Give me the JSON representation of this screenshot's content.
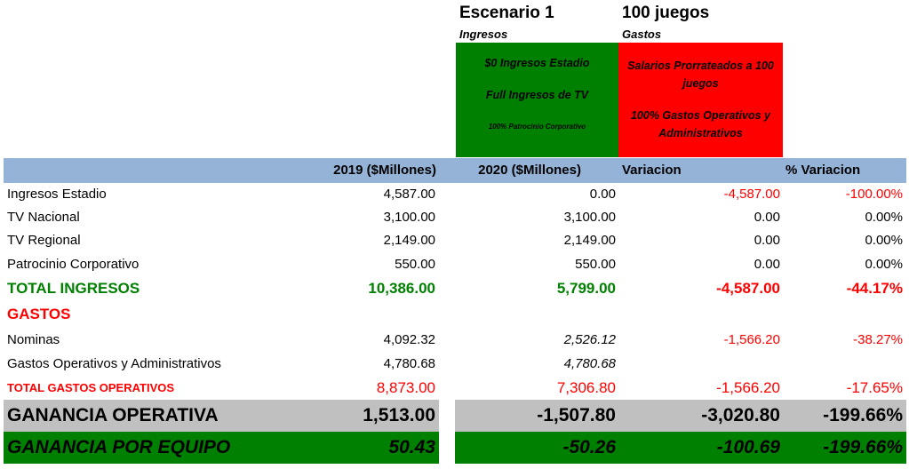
{
  "scenario": {
    "title": "Escenario 1",
    "games": "100 juegos",
    "ingresos_label": "Ingresos",
    "gastos_label": "Gastos",
    "ingresos_notes": [
      "$0 Ingresos Estadio",
      "Full Ingresos de TV",
      "100% Patrocinio Corporativo"
    ],
    "gastos_notes": [
      "Salarios Prorrateados a 100 juegos",
      "100% Gastos Operativos y Administrativos"
    ]
  },
  "header": {
    "col1": "2019 ($Millones)",
    "col2": "2020 ($Millones)",
    "col3": "Variacion",
    "col4": "% Variacion"
  },
  "rows": [
    {
      "label": "Ingresos Estadio",
      "v2019": "4,587.00",
      "v2020": "0.00",
      "var": "-4,587.00",
      "pct": "-100.00%"
    },
    {
      "label": "TV Nacional",
      "v2019": "3,100.00",
      "v2020": "3,100.00",
      "var": "0.00",
      "pct": "0.00%"
    },
    {
      "label": "TV Regional",
      "v2019": "2,149.00",
      "v2020": "2,149.00",
      "var": "0.00",
      "pct": "0.00%"
    },
    {
      "label": "Patrocinio Corporativo",
      "v2019": "550.00",
      "v2020": "550.00",
      "var": "0.00",
      "pct": "0.00%"
    },
    {
      "label": "TOTAL INGRESOS",
      "v2019": "10,386.00",
      "v2020": "5,799.00",
      "var": "-4,587.00",
      "pct": "-44.17%"
    },
    {
      "label": "GASTOS"
    },
    {
      "label": "Nominas",
      "v2019": "4,092.32",
      "v2020": "2,526.12",
      "var": "-1,566.20",
      "pct": "-38.27%"
    },
    {
      "label": "Gastos Operativos y Administrativos",
      "v2019": "4,780.68",
      "v2020": "4,780.68"
    },
    {
      "label": "TOTAL GASTOS OPERATIVOS",
      "v2019": "8,873.00",
      "v2020": "7,306.80",
      "var": "-1,566.20",
      "pct": "-17.65%"
    },
    {
      "label": "GANANCIA OPERATIVA",
      "v2019": "1,513.00",
      "v2020": "-1,507.80",
      "var": "-3,020.80",
      "pct": "-199.66%"
    },
    {
      "label": "GANANCIA POR EQUIPO",
      "v2019": "50.43",
      "v2020": "-50.26",
      "var": "-100.69",
      "pct": "-199.66%"
    }
  ],
  "colors": {
    "header_bg": "#95b3d7",
    "green": "#008000",
    "red": "#ff0000",
    "gray": "#c0c0c0"
  }
}
